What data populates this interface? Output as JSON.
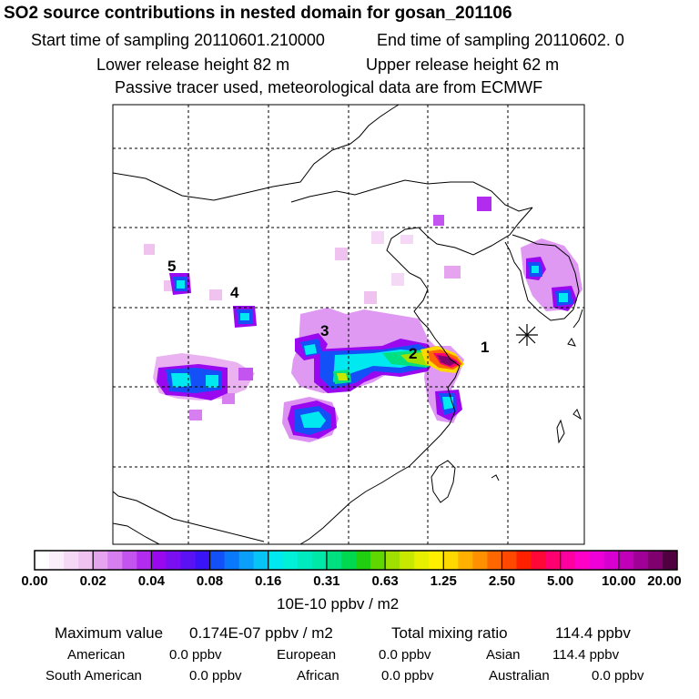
{
  "header": {
    "title": "SO2 source contributions in nested domain for gosan_201106",
    "start_sampling": "Start time of sampling 20110601.210000",
    "end_sampling": "End time of sampling 20110602.     0",
    "lower_release": "Lower release height   82 m",
    "upper_release": "Upper release height   62 m",
    "tracer_note": "Passive tracer used, meteorological data are from ECMWF"
  },
  "chart_data": {
    "type": "heatmap",
    "title": "SO2 source contributions in nested domain for gosan_201106",
    "source_labels": [
      "1",
      "2",
      "3",
      "4",
      "5"
    ],
    "colorbar": {
      "ticks": [
        "0.00",
        "0.02",
        "0.04",
        "0.08",
        "0.16",
        "0.31",
        "0.63",
        "1.25",
        "2.50",
        "5.00",
        "10.00",
        "20.00"
      ],
      "units": "10E-10 ppbv / m2",
      "colors": [
        [
          "#ffffff",
          "#fbeefb",
          "#f5d8f5",
          "#efc2f0"
        ],
        [
          "#e6a4ef",
          "#d77ff0",
          "#c454f0",
          "#b22cf0"
        ],
        [
          "#9a08f0",
          "#7a10f2",
          "#5a12f4",
          "#3a14f6"
        ],
        [
          "#1450f8",
          "#0a78fa",
          "#0aa0fa",
          "#06c4f6"
        ],
        [
          "#00e8f0",
          "#00f0d8",
          "#00eac0",
          "#00e8a8"
        ],
        [
          "#00e080",
          "#00d850",
          "#20d010",
          "#60d800"
        ],
        [
          "#a0e000",
          "#c8e800",
          "#e8f000",
          "#fff000"
        ],
        [
          "#ffd800",
          "#ffb000",
          "#ff9000",
          "#ff6800"
        ],
        [
          "#ff4800",
          "#ff2000",
          "#ff0838",
          "#ff0070"
        ],
        [
          "#ff00a0",
          "#ff00c8",
          "#f000d8",
          "#d800d0"
        ],
        [
          "#c000b8",
          "#a00098",
          "#800070",
          "#500040"
        ]
      ],
      "max_value": 20.0
    },
    "stats": {
      "max_label": "Maximum value",
      "max_value": "0.174E-07 ppbv / m2",
      "total_label": "Total mixing ratio",
      "total_value": "114.4 ppbv"
    },
    "regions": [
      {
        "name": "American",
        "value": "0.0 ppbv"
      },
      {
        "name": "European",
        "value": "0.0 ppbv"
      },
      {
        "name": "Asian",
        "value": "114.4 ppbv"
      },
      {
        "name": "South American",
        "value": "0.0 ppbv"
      },
      {
        "name": "African",
        "value": "0.0 ppbv"
      },
      {
        "name": "Australian",
        "value": "0.0 ppbv"
      }
    ]
  }
}
